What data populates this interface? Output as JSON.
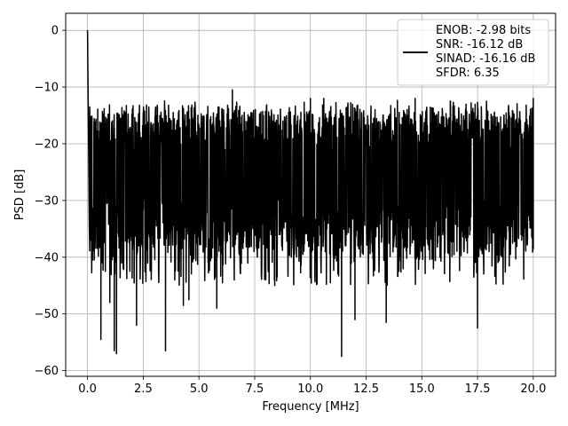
{
  "chart_data": {
    "type": "line",
    "xlabel": "Frequency [MHz]",
    "ylabel": "PSD [dB]",
    "xlim": [
      -0.98,
      21.0
    ],
    "ylim": [
      -61,
      3
    ],
    "xticks": [
      0.0,
      2.5,
      5.0,
      7.5,
      10.0,
      12.5,
      15.0,
      17.5,
      20.0
    ],
    "xtick_labels": [
      "0.0",
      "2.5",
      "5.0",
      "7.5",
      "10.0",
      "12.5",
      "15.0",
      "17.5",
      "20.0"
    ],
    "yticks": [
      0,
      -10,
      -20,
      -30,
      -40,
      -50,
      -60
    ],
    "ytick_labels": [
      "0",
      "−10",
      "−20",
      "−30",
      "−40",
      "−50",
      "−60"
    ],
    "grid": true,
    "legend_position": "top-right",
    "legend_lines": [
      "ENOB: -2.98 bits",
      "SNR: -16.12 dB",
      "SINAD: -16.16 dB",
      "SFDR: 6.35"
    ],
    "series": [
      {
        "color": "#000000",
        "noise_band_approx": {
          "typical_upper": -18,
          "typical_lower": -33,
          "peak_upper": -12,
          "peak_lower": -42
        },
        "points": [
          [
            0.0,
            0.0
          ],
          [
            0.05,
            -21
          ],
          [
            0.1,
            -13.5
          ],
          [
            0.15,
            -37
          ],
          [
            0.2,
            -24
          ],
          [
            0.3,
            -40.5
          ],
          [
            0.6,
            -54.5
          ],
          [
            0.8,
            -42.5
          ],
          [
            1.0,
            -48
          ],
          [
            1.2,
            -56.5
          ],
          [
            1.3,
            -57
          ],
          [
            1.6,
            -42
          ],
          [
            1.9,
            -42.5
          ],
          [
            2.2,
            -52
          ],
          [
            2.5,
            -14.5
          ],
          [
            2.7,
            -41
          ],
          [
            3.5,
            -56.5
          ],
          [
            4.3,
            -48.5
          ],
          [
            4.55,
            -47.5
          ],
          [
            5.8,
            -49
          ],
          [
            5.9,
            -13.5
          ],
          [
            6.5,
            -10.5
          ],
          [
            8.4,
            -45
          ],
          [
            10.0,
            -12
          ],
          [
            10.6,
            -12
          ],
          [
            11.4,
            -57.5
          ],
          [
            12.0,
            -51
          ],
          [
            12.3,
            -14.5
          ],
          [
            12.9,
            -14
          ],
          [
            13.4,
            -51.5
          ],
          [
            14.7,
            -12
          ],
          [
            17.5,
            -52.5
          ],
          [
            17.9,
            -12.5
          ],
          [
            20.0,
            -12
          ],
          [
            20.0,
            -38.5
          ]
        ]
      }
    ]
  }
}
